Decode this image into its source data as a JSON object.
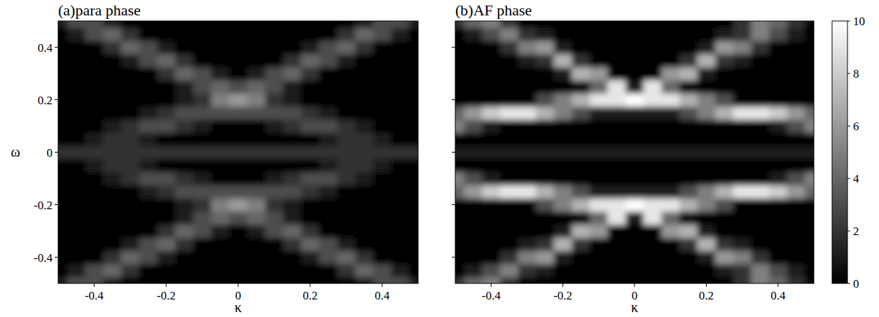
{
  "chart_data": [
    {
      "type": "heatmap",
      "title": "(a)para phase",
      "x_label": "κ",
      "y_label": "ω",
      "x": [
        -0.5,
        -0.45,
        -0.4,
        -0.35,
        -0.3,
        -0.25,
        -0.2,
        -0.15,
        -0.1,
        -0.05,
        0,
        0.05,
        0.1,
        0.15,
        0.2,
        0.25,
        0.3,
        0.35,
        0.4,
        0.45,
        0.5
      ],
      "y": [
        -0.5,
        -0.45,
        -0.4,
        -0.35,
        -0.3,
        -0.25,
        -0.2,
        -0.15,
        -0.1,
        -0.05,
        0,
        0.05,
        0.1,
        0.15,
        0.2,
        0.25,
        0.3,
        0.35,
        0.4,
        0.45,
        0.5
      ],
      "values": [
        [
          1,
          3,
          3,
          1,
          0,
          0,
          0,
          0,
          0,
          0,
          0,
          0,
          0,
          0,
          0,
          0,
          0,
          1,
          3,
          3,
          1
        ],
        [
          0,
          1,
          3,
          4,
          2,
          0,
          0,
          0,
          0,
          0,
          0,
          0,
          0,
          0,
          0,
          0,
          2,
          4,
          3,
          1,
          0
        ],
        [
          0,
          0,
          0,
          2,
          4,
          3,
          1,
          0,
          0,
          0,
          0,
          0,
          0,
          0,
          1,
          3,
          4,
          2,
          0,
          0,
          0
        ],
        [
          0,
          0,
          0,
          0,
          1,
          3,
          4,
          2,
          0,
          0,
          0,
          0,
          0,
          2,
          4,
          3,
          1,
          0,
          0,
          0,
          0
        ],
        [
          0,
          0,
          0,
          0,
          0,
          0,
          2,
          4,
          3,
          1,
          0,
          1,
          3,
          4,
          2,
          0,
          0,
          0,
          0,
          0,
          0
        ],
        [
          0,
          0,
          0,
          0,
          0,
          0,
          0,
          1,
          3,
          4,
          3,
          4,
          3,
          1,
          0,
          0,
          0,
          0,
          0,
          0,
          0
        ],
        [
          0,
          0,
          0,
          0,
          0,
          0,
          0,
          1,
          2,
          5,
          6,
          5,
          2,
          1,
          0,
          0,
          0,
          0,
          0,
          0,
          0
        ],
        [
          0,
          0,
          0,
          0,
          0,
          1,
          2,
          3,
          3,
          3,
          3,
          3,
          3,
          3,
          2,
          1,
          0,
          0,
          0,
          0,
          0
        ],
        [
          0,
          0,
          0,
          1,
          2,
          3,
          3,
          2,
          1,
          0,
          0,
          0,
          1,
          2,
          3,
          3,
          2,
          1,
          0,
          0,
          0
        ],
        [
          0,
          0,
          1,
          2,
          2,
          1,
          0,
          0,
          0,
          0,
          0,
          0,
          0,
          0,
          0,
          1,
          2,
          2,
          1,
          0,
          0
        ],
        [
          2,
          2,
          2,
          2,
          2,
          2,
          2,
          2,
          2,
          2,
          2,
          2,
          2,
          2,
          2,
          2,
          2,
          2,
          2,
          2,
          2
        ],
        [
          0,
          0,
          1,
          2,
          2,
          1,
          0,
          0,
          0,
          0,
          0,
          0,
          0,
          0,
          0,
          1,
          2,
          2,
          1,
          0,
          0
        ],
        [
          0,
          0,
          0,
          1,
          2,
          3,
          3,
          2,
          1,
          0,
          0,
          0,
          1,
          2,
          3,
          3,
          2,
          1,
          0,
          0,
          0
        ],
        [
          0,
          0,
          0,
          0,
          0,
          1,
          2,
          3,
          3,
          3,
          3,
          3,
          3,
          3,
          2,
          1,
          0,
          0,
          0,
          0,
          0
        ],
        [
          0,
          0,
          0,
          0,
          0,
          0,
          0,
          1,
          2,
          5,
          6,
          5,
          2,
          1,
          0,
          0,
          0,
          0,
          0,
          0,
          0
        ],
        [
          0,
          0,
          0,
          0,
          0,
          0,
          0,
          1,
          3,
          4,
          3,
          4,
          3,
          1,
          0,
          0,
          0,
          0,
          0,
          0,
          0
        ],
        [
          0,
          0,
          0,
          0,
          0,
          0,
          2,
          4,
          3,
          1,
          0,
          1,
          3,
          4,
          2,
          0,
          0,
          0,
          0,
          0,
          0
        ],
        [
          0,
          0,
          0,
          0,
          1,
          3,
          4,
          2,
          0,
          0,
          0,
          0,
          0,
          2,
          4,
          3,
          1,
          0,
          0,
          0,
          0
        ],
        [
          0,
          0,
          0,
          2,
          4,
          3,
          1,
          0,
          0,
          0,
          0,
          0,
          0,
          0,
          1,
          3,
          4,
          2,
          0,
          0,
          0
        ],
        [
          0,
          1,
          3,
          4,
          2,
          0,
          0,
          0,
          0,
          0,
          0,
          0,
          0,
          0,
          0,
          0,
          2,
          4,
          3,
          1,
          0
        ],
        [
          1,
          3,
          3,
          1,
          0,
          0,
          0,
          0,
          0,
          0,
          0,
          0,
          0,
          0,
          0,
          0,
          0,
          1,
          3,
          3,
          1
        ]
      ],
      "xlim": [
        -0.5,
        0.5
      ],
      "ylim": [
        -0.5,
        0.5
      ],
      "xticks": [
        -0.4,
        -0.2,
        0,
        0.2,
        0.4
      ],
      "yticks": [
        -0.4,
        -0.2,
        0,
        0.2,
        0.4
      ],
      "color_range": [
        0,
        10
      ]
    },
    {
      "type": "heatmap",
      "title": "(b)AF phase",
      "x_label": "κ",
      "x": [
        -0.5,
        -0.45,
        -0.4,
        -0.35,
        -0.3,
        -0.25,
        -0.2,
        -0.15,
        -0.1,
        -0.05,
        0,
        0.05,
        0.1,
        0.15,
        0.2,
        0.25,
        0.3,
        0.35,
        0.4,
        0.45,
        0.5
      ],
      "y": [
        -0.5,
        -0.45,
        -0.4,
        -0.35,
        -0.3,
        -0.25,
        -0.2,
        -0.15,
        -0.1,
        -0.05,
        0,
        0.05,
        0.1,
        0.15,
        0.2,
        0.25,
        0.3,
        0.35,
        0.4,
        0.45,
        0.5
      ],
      "values": [
        [
          2,
          4,
          5,
          2,
          0,
          0,
          0,
          0,
          0,
          0,
          0,
          0,
          0,
          0,
          0,
          0,
          2,
          5,
          4,
          2,
          0
        ],
        [
          0,
          1,
          3,
          5,
          2,
          1,
          0,
          0,
          0,
          0,
          0,
          0,
          0,
          0,
          0,
          1,
          2,
          5,
          3,
          1,
          0
        ],
        [
          0,
          0,
          0,
          2,
          5,
          6,
          1,
          0,
          0,
          0,
          0,
          0,
          0,
          0,
          1,
          6,
          5,
          2,
          0,
          0,
          0
        ],
        [
          0,
          0,
          0,
          0,
          1,
          2,
          7,
          2,
          0,
          0,
          0,
          0,
          0,
          2,
          7,
          2,
          1,
          0,
          0,
          0,
          0
        ],
        [
          0,
          0,
          0,
          0,
          0,
          0,
          1,
          7,
          6,
          0,
          0,
          0,
          6,
          7,
          1,
          0,
          0,
          0,
          0,
          0,
          0
        ],
        [
          0,
          0,
          0,
          0,
          0,
          0,
          0,
          0,
          4,
          9,
          1,
          9,
          4,
          0,
          0,
          0,
          0,
          0,
          0,
          0,
          0
        ],
        [
          0,
          0,
          0,
          0,
          0,
          3,
          5,
          7,
          9,
          9,
          10,
          9,
          9,
          7,
          5,
          3,
          0,
          0,
          0,
          0,
          0
        ],
        [
          4,
          6,
          8,
          9,
          9,
          7,
          5,
          3,
          1,
          1,
          1,
          1,
          1,
          3,
          5,
          7,
          9,
          9,
          8,
          6,
          4
        ],
        [
          5,
          3,
          1,
          0,
          0,
          0,
          0,
          0,
          0,
          0,
          0,
          0,
          0,
          0,
          0,
          0,
          0,
          0,
          1,
          3,
          5
        ],
        [
          0,
          0,
          0,
          0,
          0,
          0,
          0,
          0,
          0,
          0,
          0,
          0,
          0,
          0,
          0,
          0,
          0,
          0,
          0,
          0,
          0
        ],
        [
          1,
          1,
          1,
          1,
          1,
          1,
          1,
          1,
          1,
          1,
          1,
          1,
          1,
          1,
          1,
          1,
          1,
          1,
          1,
          1,
          1
        ],
        [
          0,
          0,
          0,
          0,
          0,
          0,
          0,
          0,
          0,
          0,
          0,
          0,
          0,
          0,
          0,
          0,
          0,
          0,
          0,
          0,
          0
        ],
        [
          5,
          3,
          1,
          0,
          0,
          0,
          0,
          0,
          0,
          0,
          0,
          0,
          0,
          0,
          0,
          0,
          0,
          0,
          1,
          3,
          5
        ],
        [
          4,
          6,
          8,
          9,
          9,
          7,
          5,
          3,
          1,
          1,
          1,
          1,
          1,
          3,
          5,
          7,
          9,
          9,
          8,
          6,
          4
        ],
        [
          0,
          0,
          0,
          0,
          0,
          3,
          5,
          7,
          9,
          9,
          10,
          9,
          9,
          7,
          5,
          3,
          0,
          0,
          0,
          0,
          0
        ],
        [
          0,
          0,
          0,
          0,
          0,
          0,
          0,
          0,
          4,
          9,
          1,
          9,
          4,
          0,
          0,
          0,
          0,
          0,
          0,
          0,
          0
        ],
        [
          0,
          0,
          0,
          0,
          0,
          0,
          1,
          7,
          6,
          0,
          0,
          0,
          6,
          7,
          1,
          0,
          0,
          0,
          0,
          0,
          0
        ],
        [
          0,
          0,
          0,
          0,
          1,
          2,
          7,
          2,
          0,
          0,
          0,
          0,
          0,
          2,
          7,
          2,
          1,
          0,
          0,
          0,
          0
        ],
        [
          0,
          0,
          0,
          2,
          5,
          6,
          1,
          0,
          0,
          0,
          0,
          0,
          0,
          0,
          1,
          6,
          5,
          2,
          0,
          0,
          0
        ],
        [
          0,
          1,
          3,
          5,
          2,
          1,
          0,
          0,
          0,
          0,
          0,
          0,
          0,
          0,
          0,
          1,
          2,
          5,
          3,
          1,
          0
        ],
        [
          2,
          4,
          5,
          2,
          0,
          0,
          0,
          0,
          0,
          0,
          0,
          0,
          0,
          0,
          0,
          0,
          2,
          5,
          4,
          2,
          0
        ]
      ],
      "xlim": [
        -0.5,
        0.5
      ],
      "ylim": [
        -0.5,
        0.5
      ],
      "xticks": [
        -0.4,
        -0.2,
        0,
        0.2,
        0.4
      ],
      "yticks": [
        -0.4,
        -0.2,
        0,
        0.2,
        0.4
      ],
      "tick_labels": "x",
      "color_range": [
        0,
        10
      ],
      "color_ticks": [
        0,
        2,
        4,
        6,
        8,
        10
      ]
    }
  ]
}
